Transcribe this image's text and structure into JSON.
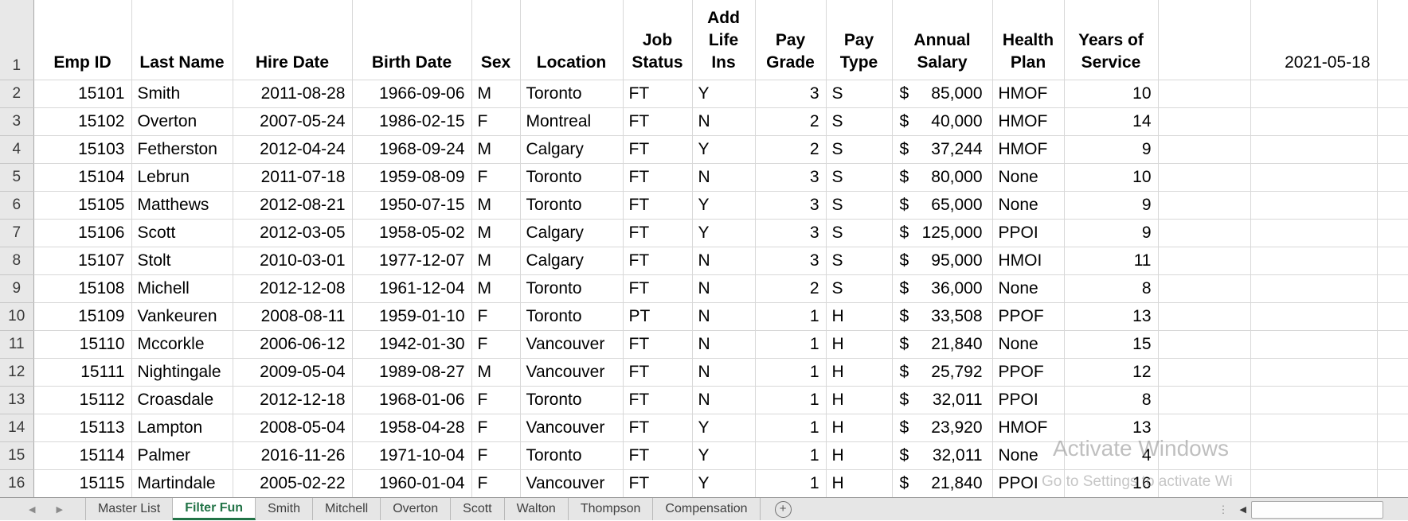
{
  "sheet": {
    "columns": [
      "Emp ID",
      "Last Name",
      "Hire Date",
      "Birth Date",
      "Sex",
      "Location",
      "Job Status",
      "Add Life Ins",
      "Pay Grade",
      "Pay Type",
      "Annual Salary",
      "Health Plan",
      "Years of Service"
    ],
    "corner_date": "2021-05-18",
    "currency_symbol": "$",
    "rows": [
      {
        "emp_id": "15101",
        "last_name": "Smith",
        "hire_date": "2011-08-28",
        "birth_date": "1966-09-06",
        "sex": "M",
        "location": "Toronto",
        "job_status": "FT",
        "add_life_ins": "Y",
        "pay_grade": "3",
        "pay_type": "S",
        "salary": "85,000",
        "health_plan": "HMOF",
        "years_of_service": "10"
      },
      {
        "emp_id": "15102",
        "last_name": "Overton",
        "hire_date": "2007-05-24",
        "birth_date": "1986-02-15",
        "sex": "F",
        "location": "Montreal",
        "job_status": "FT",
        "add_life_ins": "N",
        "pay_grade": "2",
        "pay_type": "S",
        "salary": "40,000",
        "health_plan": "HMOF",
        "years_of_service": "14"
      },
      {
        "emp_id": "15103",
        "last_name": "Fetherston",
        "hire_date": "2012-04-24",
        "birth_date": "1968-09-24",
        "sex": "M",
        "location": "Calgary",
        "job_status": "FT",
        "add_life_ins": "Y",
        "pay_grade": "2",
        "pay_type": "S",
        "salary": "37,244",
        "health_plan": "HMOF",
        "years_of_service": "9"
      },
      {
        "emp_id": "15104",
        "last_name": "Lebrun",
        "hire_date": "2011-07-18",
        "birth_date": "1959-08-09",
        "sex": "F",
        "location": "Toronto",
        "job_status": "FT",
        "add_life_ins": "N",
        "pay_grade": "3",
        "pay_type": "S",
        "salary": "80,000",
        "health_plan": "None",
        "years_of_service": "10"
      },
      {
        "emp_id": "15105",
        "last_name": "Matthews",
        "hire_date": "2012-08-21",
        "birth_date": "1950-07-15",
        "sex": "M",
        "location": "Toronto",
        "job_status": "FT",
        "add_life_ins": "Y",
        "pay_grade": "3",
        "pay_type": "S",
        "salary": "65,000",
        "health_plan": "None",
        "years_of_service": "9"
      },
      {
        "emp_id": "15106",
        "last_name": "Scott",
        "hire_date": "2012-03-05",
        "birth_date": "1958-05-02",
        "sex": "M",
        "location": "Calgary",
        "job_status": "FT",
        "add_life_ins": "Y",
        "pay_grade": "3",
        "pay_type": "S",
        "salary": "125,000",
        "health_plan": "PPOI",
        "years_of_service": "9"
      },
      {
        "emp_id": "15107",
        "last_name": "Stolt",
        "hire_date": "2010-03-01",
        "birth_date": "1977-12-07",
        "sex": "M",
        "location": "Calgary",
        "job_status": "FT",
        "add_life_ins": "N",
        "pay_grade": "3",
        "pay_type": "S",
        "salary": "95,000",
        "health_plan": "HMOI",
        "years_of_service": "11"
      },
      {
        "emp_id": "15108",
        "last_name": "Michell",
        "hire_date": "2012-12-08",
        "birth_date": "1961-12-04",
        "sex": "M",
        "location": "Toronto",
        "job_status": "FT",
        "add_life_ins": "N",
        "pay_grade": "2",
        "pay_type": "S",
        "salary": "36,000",
        "health_plan": "None",
        "years_of_service": "8"
      },
      {
        "emp_id": "15109",
        "last_name": "Vankeuren",
        "hire_date": "2008-08-11",
        "birth_date": "1959-01-10",
        "sex": "F",
        "location": "Toronto",
        "job_status": "PT",
        "add_life_ins": "N",
        "pay_grade": "1",
        "pay_type": "H",
        "salary": "33,508",
        "health_plan": "PPOF",
        "years_of_service": "13"
      },
      {
        "emp_id": "15110",
        "last_name": "Mccorkle",
        "hire_date": "2006-06-12",
        "birth_date": "1942-01-30",
        "sex": "F",
        "location": "Vancouver",
        "job_status": "FT",
        "add_life_ins": "N",
        "pay_grade": "1",
        "pay_type": "H",
        "salary": "21,840",
        "health_plan": "None",
        "years_of_service": "15"
      },
      {
        "emp_id": "15111",
        "last_name": "Nightingale",
        "hire_date": "2009-05-04",
        "birth_date": "1989-08-27",
        "sex": "M",
        "location": "Vancouver",
        "job_status": "FT",
        "add_life_ins": "N",
        "pay_grade": "1",
        "pay_type": "H",
        "salary": "25,792",
        "health_plan": "PPOF",
        "years_of_service": "12"
      },
      {
        "emp_id": "15112",
        "last_name": "Croasdale",
        "hire_date": "2012-12-18",
        "birth_date": "1968-01-06",
        "sex": "F",
        "location": "Toronto",
        "job_status": "FT",
        "add_life_ins": "N",
        "pay_grade": "1",
        "pay_type": "H",
        "salary": "32,011",
        "health_plan": "PPOI",
        "years_of_service": "8"
      },
      {
        "emp_id": "15113",
        "last_name": "Lampton",
        "hire_date": "2008-05-04",
        "birth_date": "1958-04-28",
        "sex": "F",
        "location": "Vancouver",
        "job_status": "FT",
        "add_life_ins": "Y",
        "pay_grade": "1",
        "pay_type": "H",
        "salary": "23,920",
        "health_plan": "HMOF",
        "years_of_service": "13"
      },
      {
        "emp_id": "15114",
        "last_name": "Palmer",
        "hire_date": "2016-11-26",
        "birth_date": "1971-10-04",
        "sex": "F",
        "location": "Toronto",
        "job_status": "FT",
        "add_life_ins": "Y",
        "pay_grade": "1",
        "pay_type": "H",
        "salary": "32,011",
        "health_plan": "None",
        "years_of_service": "4"
      },
      {
        "emp_id": "15115",
        "last_name": "Martindale",
        "hire_date": "2005-02-22",
        "birth_date": "1960-01-04",
        "sex": "F",
        "location": "Vancouver",
        "job_status": "FT",
        "add_life_ins": "Y",
        "pay_grade": "1",
        "pay_type": "H",
        "salary": "21,840",
        "health_plan": "PPOI",
        "years_of_service": "16"
      }
    ]
  },
  "tab_bar": {
    "tabs": [
      {
        "label": "Master List",
        "active": false
      },
      {
        "label": "Filter Fun",
        "active": true
      },
      {
        "label": "Smith",
        "active": false
      },
      {
        "label": "Mitchell",
        "active": false
      },
      {
        "label": "Overton",
        "active": false
      },
      {
        "label": "Scott",
        "active": false
      },
      {
        "label": "Walton",
        "active": false
      },
      {
        "label": "Thompson",
        "active": false
      },
      {
        "label": "Compensation",
        "active": false
      }
    ]
  },
  "icons": {
    "tab_prev": "◀",
    "tab_next": "▶",
    "add_sheet": "+",
    "drag_dots": "⋮",
    "scroll_left": "◀"
  },
  "watermark": {
    "line1": "Activate Windows",
    "line2": "Go to Settings to activate Wi"
  },
  "colors": {
    "accent_green": "#217346",
    "gridline": "#d8d8d8",
    "gutter_bg": "#e8e8e8",
    "tabbar_bg": "#e6e6e6",
    "watermark_gray": "#8c8c8c"
  }
}
